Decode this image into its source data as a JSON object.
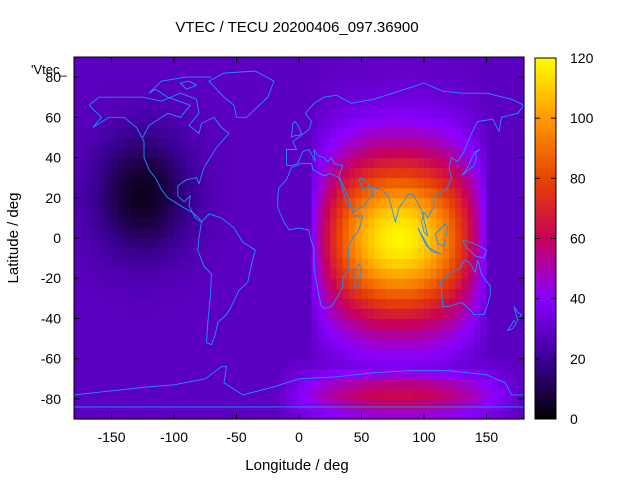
{
  "chart_data": {
    "type": "heatmap",
    "title": "VTEC / TECU 20200406_097.36900",
    "xlabel": "Longitude / deg",
    "ylabel": "Latitude / deg",
    "series_label": "'Vtec_",
    "xlim": [
      -180,
      180
    ],
    "ylim": [
      -90,
      90
    ],
    "xticks": [
      -150,
      -100,
      -50,
      0,
      50,
      100,
      150
    ],
    "yticks": [
      -80,
      -60,
      -40,
      -20,
      0,
      20,
      40,
      60,
      80
    ],
    "colorbar": {
      "min": 0,
      "max": 120,
      "ticks": [
        0,
        20,
        40,
        60,
        80,
        100,
        120
      ]
    },
    "lon_step": 5,
    "lat_step": 5,
    "field": {
      "background": 28,
      "peak": {
        "lon": 80,
        "lat": 0,
        "value": 118
      },
      "trough": {
        "lon": -125,
        "lat": 22,
        "value": 4
      },
      "southern_band": {
        "lat": -78,
        "value": 62
      }
    },
    "overlay": "coastlines"
  }
}
